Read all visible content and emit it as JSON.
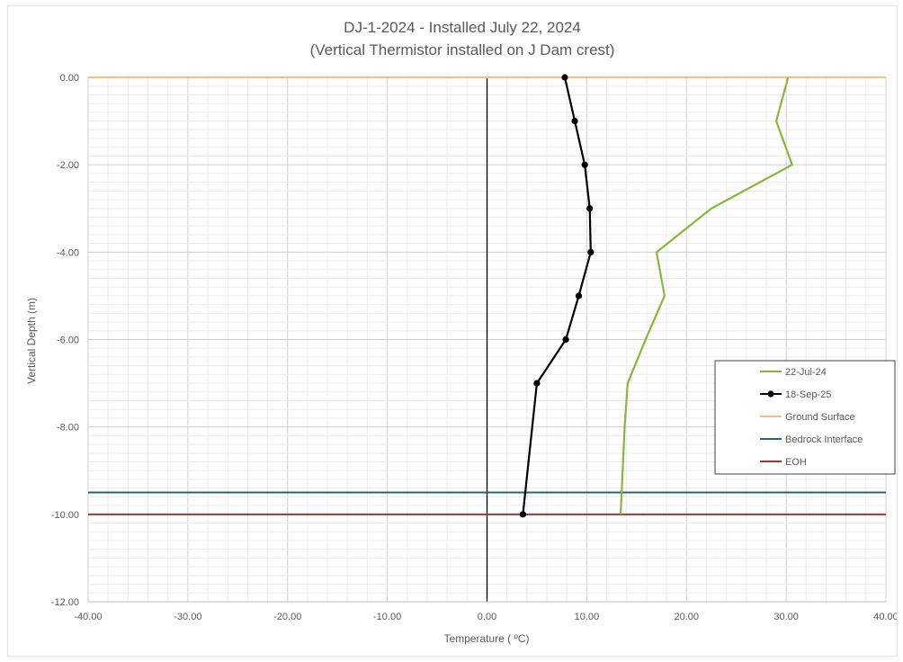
{
  "chart_data": {
    "type": "line",
    "title_lines": [
      "DJ-1-2024 - Installed July 22, 2024",
      "(Vertical Thermistor installed on J Dam crest)"
    ],
    "xlabel": "Temperature ( ºC)",
    "ylabel": "Vertical Depth (m)",
    "xlim": [
      -40,
      40
    ],
    "ylim": [
      -12,
      0
    ],
    "x_ticks": [
      "-40.00",
      "-30.00",
      "-20.00",
      "-10.00",
      "0.00",
      "10.00",
      "20.00",
      "30.00",
      "40.00"
    ],
    "y_ticks": [
      "0.00",
      "-2.00",
      "-4.00",
      "-6.00",
      "-8.00",
      "-10.00",
      "-12.00"
    ],
    "grid": true,
    "legend_position": "right",
    "series": [
      {
        "name": "22-Jul-24",
        "color": "#8db43e",
        "markers": false,
        "points": [
          [
            30.2,
            0
          ],
          [
            29.0,
            -1
          ],
          [
            30.6,
            -2
          ],
          [
            22.5,
            -3
          ],
          [
            17.0,
            -4
          ],
          [
            17.8,
            -5
          ],
          [
            15.9,
            -6
          ],
          [
            14.1,
            -7
          ],
          [
            13.8,
            -8
          ],
          [
            13.6,
            -9
          ],
          [
            13.4,
            -10
          ]
        ]
      },
      {
        "name": "18-Sep-25",
        "color": "#000000",
        "markers": true,
        "points": [
          [
            7.8,
            0
          ],
          [
            8.8,
            -1
          ],
          [
            9.8,
            -2
          ],
          [
            10.3,
            -3
          ],
          [
            10.4,
            -4
          ],
          [
            9.2,
            -5
          ],
          [
            7.9,
            -6
          ],
          [
            5.0,
            -7
          ],
          [
            3.6,
            -10
          ]
        ]
      }
    ],
    "reference_lines": [
      {
        "name": "Ground Surface",
        "y": 0,
        "color": "#f5bf8a"
      },
      {
        "name": "Bedrock Interface",
        "y": -9.5,
        "color": "#2e5f7a"
      },
      {
        "name": "EOH",
        "y": -10,
        "color": "#a83232"
      }
    ]
  }
}
